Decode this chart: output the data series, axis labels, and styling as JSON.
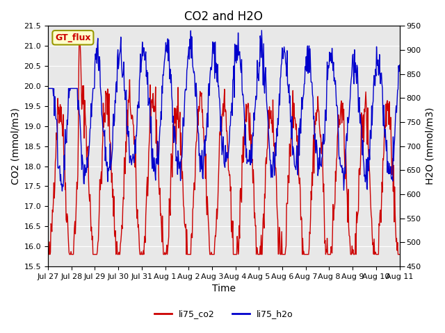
{
  "title": "CO2 and H2O",
  "xlabel": "Time",
  "ylabel_left": "CO2 (mmol/m3)",
  "ylabel_right": "H2O (mmol/m3)",
  "ylim_left": [
    15.5,
    21.5
  ],
  "ylim_right": [
    450,
    950
  ],
  "yticks_left": [
    15.5,
    16.0,
    16.5,
    17.0,
    17.5,
    18.0,
    18.5,
    19.0,
    19.5,
    20.0,
    20.5,
    21.0,
    21.5
  ],
  "yticks_right": [
    450,
    500,
    550,
    600,
    650,
    700,
    750,
    800,
    850,
    900,
    950
  ],
  "xtick_labels": [
    "Jul 27",
    "Jul 28",
    "Jul 29",
    "Jul 30",
    "Jul 31",
    "Aug 1",
    "Aug 2",
    "Aug 3",
    "Aug 4",
    "Aug 5",
    "Aug 6",
    "Aug 7",
    "Aug 8",
    "Aug 9",
    "Aug 10",
    "Aug 11"
  ],
  "color_co2": "#cc0000",
  "color_h2o": "#0000cc",
  "legend_label_co2": "li75_co2",
  "legend_label_h2o": "li75_h2o",
  "annotation_text": "GT_flux",
  "annotation_color": "#cc0000",
  "annotation_bg": "#ffffcc",
  "background_color": "#e8e8e8",
  "title_fontsize": 12,
  "axis_label_fontsize": 10,
  "tick_fontsize": 8
}
